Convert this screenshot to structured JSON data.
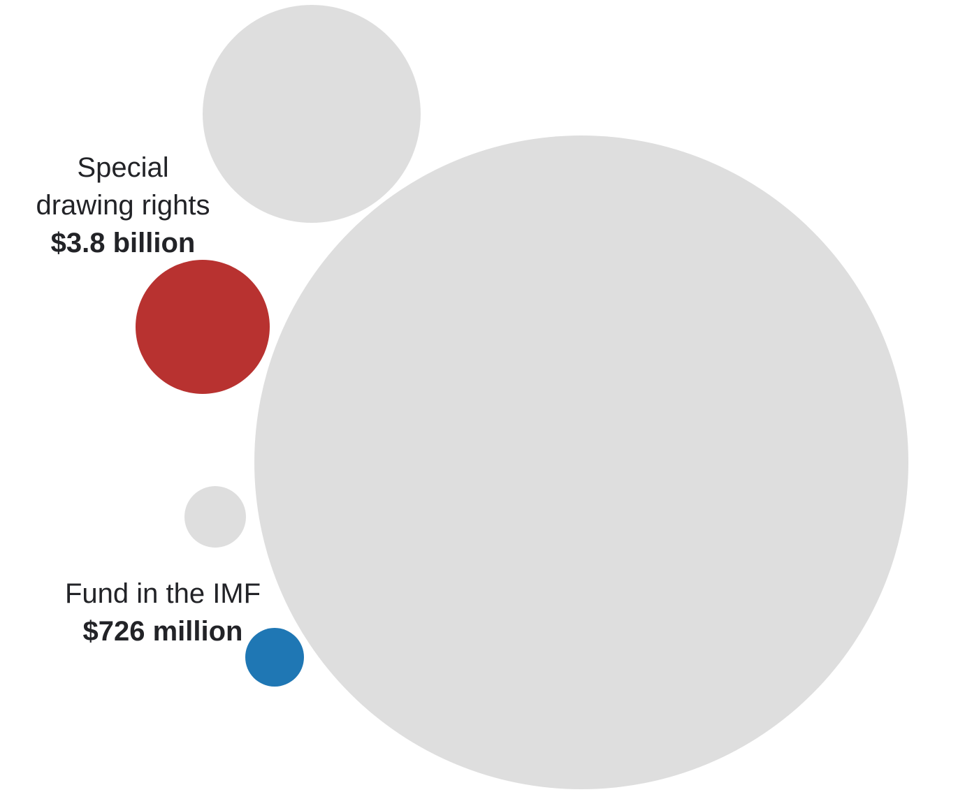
{
  "chart_data": {
    "type": "bubble",
    "bubbles": [
      {
        "id": "large",
        "name": "",
        "value": null,
        "color": "#dedede"
      },
      {
        "id": "upper",
        "name": "",
        "value": null,
        "color": "#dedede"
      },
      {
        "id": "sdr",
        "name_lines": [
          "Special",
          "drawing rights"
        ],
        "value_label": "$3.8 billion",
        "value": 3.8,
        "unit": "billion",
        "color": "#b83230"
      },
      {
        "id": "small",
        "name": "",
        "value": null,
        "color": "#dedede"
      },
      {
        "id": "imf",
        "name_lines": [
          "Fund in the IMF"
        ],
        "value_label": "$726 million",
        "value": 0.726,
        "unit": "billion",
        "color": "#1f77b4"
      }
    ]
  }
}
